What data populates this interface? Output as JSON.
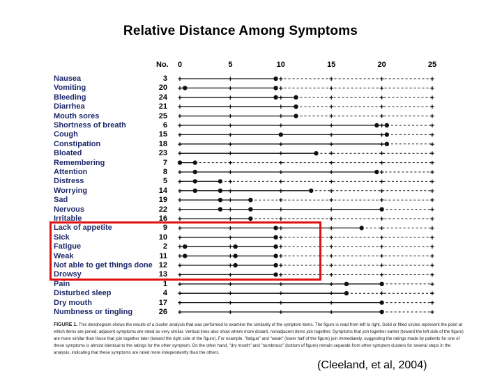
{
  "figure": {
    "title": "Relative Distance Among Symptoms",
    "number_header": "No.",
    "axis_ticks": [
      "0",
      "5",
      "10",
      "15",
      "20",
      "25"
    ],
    "axis_max": 25,
    "symptoms": [
      {
        "name": "Nausea",
        "no": "3"
      },
      {
        "name": "Vomiting",
        "no": "20"
      },
      {
        "name": "Bleeding",
        "no": "24"
      },
      {
        "name": "Diarrhea",
        "no": "21"
      },
      {
        "name": "Mouth sores",
        "no": "25"
      },
      {
        "name": "Shortness of breath",
        "no": "6"
      },
      {
        "name": "Cough",
        "no": "15"
      },
      {
        "name": "Constipation",
        "no": "18"
      },
      {
        "name": "Bloated",
        "no": "23"
      },
      {
        "name": "Remembering",
        "no": "7"
      },
      {
        "name": "Attention",
        "no": "8"
      },
      {
        "name": "Distress",
        "no": "5"
      },
      {
        "name": "Worrying",
        "no": "14"
      },
      {
        "name": "Sad",
        "no": "19"
      },
      {
        "name": "Nervous",
        "no": "22"
      },
      {
        "name": "Irritable",
        "no": "16"
      },
      {
        "name": "Lack of appetite",
        "no": "9"
      },
      {
        "name": "Sick",
        "no": "10"
      },
      {
        "name": "Fatigue",
        "no": "2"
      },
      {
        "name": "Weak",
        "no": "11"
      },
      {
        "name": "Not able to get things done",
        "no": "12"
      },
      {
        "name": "Drowsy",
        "no": "13"
      },
      {
        "name": "Pain",
        "no": "1"
      },
      {
        "name": "Disturbed sleep",
        "no": "4"
      },
      {
        "name": "Dry mouth",
        "no": "17"
      },
      {
        "name": "Numbness or tingling",
        "no": "26"
      }
    ],
    "join_distances": [
      [
        9.5
      ],
      [
        0.5,
        9.5
      ],
      [
        9.5,
        11.5
      ],
      [
        11.5
      ],
      [
        11.5
      ],
      [
        19.5,
        20.5
      ],
      [
        10,
        20.5
      ],
      [
        20.5
      ],
      [
        13.5
      ],
      [
        0,
        1.5
      ],
      [
        1.5,
        19.5
      ],
      [
        1.5,
        4
      ],
      [
        1.5,
        4,
        13
      ],
      [
        4,
        7
      ],
      [
        4,
        7,
        20
      ],
      [
        7
      ],
      [
        9.5,
        18
      ],
      [
        9.5
      ],
      [
        0.5,
        5.5,
        9.5
      ],
      [
        0.5,
        5.5,
        9.5
      ],
      [
        5.5,
        9.5
      ],
      [
        9.5
      ],
      [
        16.5,
        20
      ],
      [
        16.5
      ],
      [
        20
      ],
      [
        20
      ]
    ],
    "caption_heading": "FIGURE 1.",
    "caption_text": "This dendrogram shows the results of a cluster analysis that was performed to examine the similarity of the symptom items. The figure is read from left to right. Solid or filled circles represent the point at which items are joined; adjacent symptoms are rated as very similar. Vertical lines also show where more distant, nonadjacent items join together. Symptoms that join together earlier (toward the left side of the figure) are more similar than those that join together later (toward the right side of the figure). For example, \"fatigue\" and \"weak\" (lower half of the figure) join immediately, suggesting the ratings made by patients for one of these symptoms is almost identical to the ratings for the other symptom. On the other hand, \"dry mouth\" and \"numbness\" (bottom of figure) remain separate from other symptom clusters for several steps in the analysis, indicating that these symptoms are rated more independently than the others."
  },
  "citation": "(Cleeland, et al, 2004)",
  "colors": {
    "label_text": "#1f2a6b",
    "highlight": "#e01010",
    "line": "#111111"
  }
}
